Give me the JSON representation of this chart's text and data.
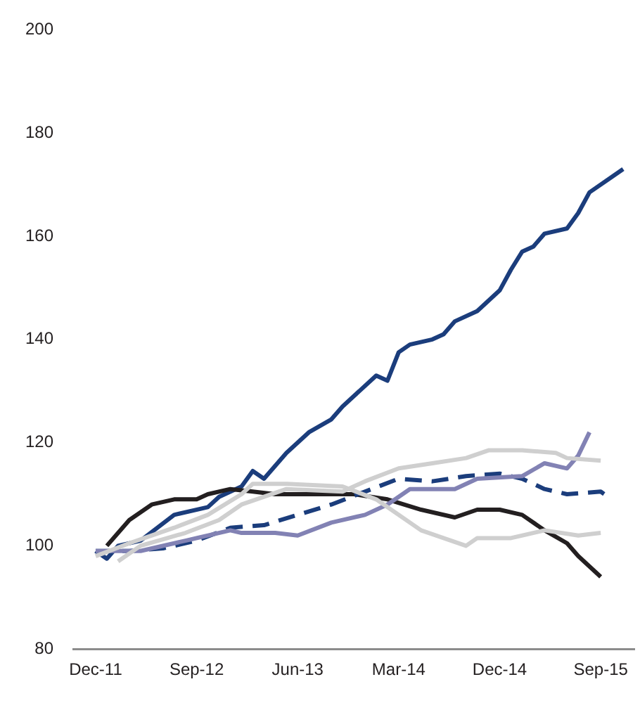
{
  "chart_data": {
    "type": "line",
    "xlim": [
      "2011-10",
      "2015-12"
    ],
    "ylim": [
      80,
      200
    ],
    "yticks": [
      80,
      100,
      120,
      140,
      160,
      180,
      200
    ],
    "xticks": [
      {
        "value": "2011-12",
        "label": "Dec-11"
      },
      {
        "value": "2012-09",
        "label": "Sep-12"
      },
      {
        "value": "2013-06",
        "label": "Jun-13"
      },
      {
        "value": "2014-03",
        "label": "Mar-14"
      },
      {
        "value": "2014-12",
        "label": "Dec-14"
      },
      {
        "value": "2015-09",
        "label": "Sep-15"
      }
    ],
    "grid": false,
    "legend": false,
    "marker": "none",
    "series": [
      {
        "color": "#cfcfcf",
        "x": [
          "2012-02",
          "2012-04",
          "2012-08",
          "2012-11",
          "2013-01",
          "2013-05",
          "2013-10",
          "2013-12",
          "2014-03",
          "2014-06",
          "2014-09",
          "2014-11",
          "2015-02",
          "2015-05",
          "2015-06",
          "2015-09"
        ],
        "values": [
          97,
          100,
          102.5,
          105,
          108,
          111,
          110.5,
          112.5,
          115,
          116,
          117,
          118.5,
          118.5,
          118,
          117,
          116.5
        ]
      },
      {
        "color": "#cfcfcf",
        "x": [
          "2011-12",
          "2012-03",
          "2012-07",
          "2012-10",
          "2013-01",
          "2013-02",
          "2013-05",
          "2013-10",
          "2014-01",
          "2014-05",
          "2014-09",
          "2014-10",
          "2015-01",
          "2015-04",
          "2015-07",
          "2015-09"
        ],
        "values": [
          98,
          100.5,
          103.5,
          106,
          110,
          112,
          112,
          111.5,
          109,
          103,
          100,
          101.5,
          101.5,
          103,
          102,
          102.5
        ]
      },
      {
        "color": "#8282b4",
        "x": [
          "2011-12",
          "2012-04",
          "2012-08",
          "2012-12",
          "2013-01",
          "2013-04",
          "2013-06",
          "2013-09",
          "2013-12",
          "2014-02",
          "2014-04",
          "2014-08",
          "2014-10",
          "2015-02",
          "2015-04",
          "2015-06",
          "2015-07",
          "2015-08"
        ],
        "values": [
          99,
          99,
          101,
          103,
          102.5,
          102.5,
          102,
          104.5,
          106,
          108,
          111,
          111,
          113,
          113.5,
          116,
          115,
          117.5,
          122
        ]
      },
      {
        "color": "#1b3d7c",
        "line_style": "dashed",
        "x": [
          "2011-12",
          "2012-03",
          "2012-06",
          "2012-09",
          "2012-12",
          "2013-03",
          "2013-06",
          "2013-09",
          "2013-12",
          "2014-03",
          "2014-06",
          "2014-09",
          "2014-12",
          "2015-02",
          "2015-04",
          "2015-06",
          "2015-09",
          "2015-10"
        ],
        "values": [
          99,
          99,
          99.5,
          101,
          103.5,
          104,
          106,
          108,
          110.5,
          113,
          112.5,
          113.5,
          114,
          113,
          111,
          110,
          110.5,
          109
        ]
      },
      {
        "color": "#231f20",
        "x": [
          "2012-01",
          "2012-03",
          "2012-05",
          "2012-07",
          "2012-09",
          "2012-10",
          "2012-12",
          "2013-02",
          "2013-04",
          "2013-08",
          "2013-11",
          "2014-02",
          "2014-05",
          "2014-08",
          "2014-10",
          "2014-12",
          "2015-02",
          "2015-04",
          "2015-06",
          "2015-07",
          "2015-09"
        ],
        "values": [
          100,
          105,
          108,
          109,
          109,
          110,
          111,
          110.5,
          110,
          110,
          110,
          109,
          107,
          105.5,
          107,
          107,
          106,
          103,
          100.5,
          98,
          94
        ]
      },
      {
        "color": "#1b3d7c",
        "x": [
          "2011-12",
          "2012-01",
          "2012-02",
          "2012-04",
          "2012-07",
          "2012-10",
          "2012-11",
          "2013-01",
          "2013-02",
          "2013-03",
          "2013-05",
          "2013-07",
          "2013-09",
          "2013-10",
          "2014-01",
          "2014-02",
          "2014-03",
          "2014-04",
          "2014-06",
          "2014-07",
          "2014-08",
          "2014-10",
          "2014-12",
          "2015-01",
          "2015-02",
          "2015-03",
          "2015-04",
          "2015-06",
          "2015-07",
          "2015-08",
          "2015-11"
        ],
        "values": [
          99,
          97.5,
          100,
          101,
          106,
          107.5,
          109.5,
          111.5,
          114.5,
          113,
          118,
          122,
          124.5,
          127,
          133,
          132,
          137.5,
          139,
          140,
          141,
          143.5,
          145.5,
          149.5,
          153.5,
          157,
          158,
          160.5,
          161.5,
          164.5,
          168.5,
          173
        ]
      }
    ]
  }
}
